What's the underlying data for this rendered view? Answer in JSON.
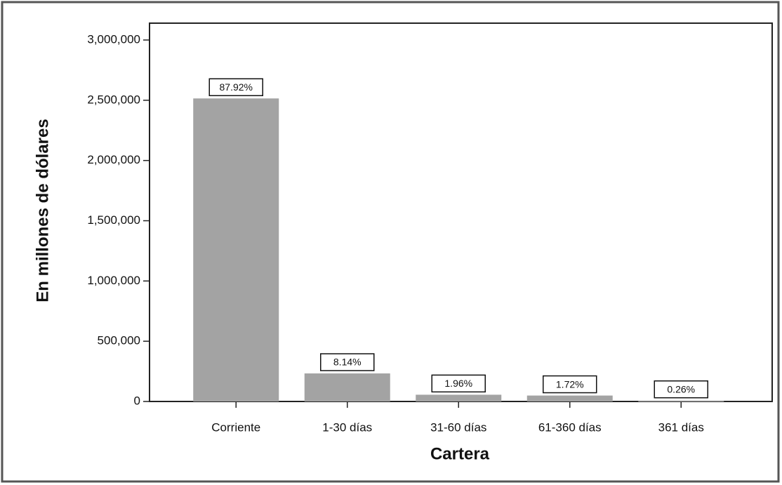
{
  "chart_data": {
    "type": "bar",
    "x_label": "Cartera",
    "y_label": "En millones de dólares",
    "categories": [
      "Corriente",
      "1-30 días",
      "31-60 días",
      "61-360 días",
      "361 días"
    ],
    "values": [
      2515000,
      232850,
      56070,
      49200,
      7440
    ],
    "data_labels": [
      "87.92%",
      "8.14%",
      "1.96%",
      "1.72%",
      "0.26%"
    ],
    "color": "#a3a3a3",
    "ylim": [
      0,
      3000000
    ],
    "yticks": [
      0,
      {
        "value": 500000,
        "label": "500,000"
      },
      {
        "value": 1000000,
        "label": "1,000,000"
      },
      {
        "value": 1500000,
        "label": "1,500,000"
      },
      {
        "value": 2000000,
        "label": "2,000,000"
      },
      {
        "value": 2500000,
        "label": "2,500,000"
      },
      {
        "value": 3000000,
        "label": "3,000,000"
      }
    ],
    "grid": false
  }
}
